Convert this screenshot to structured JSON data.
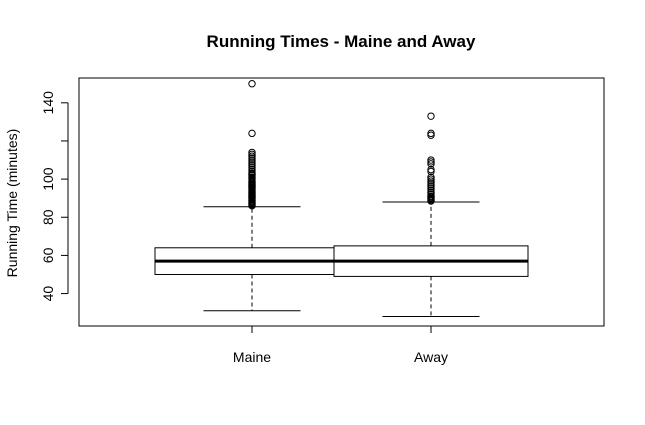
{
  "chart_data": {
    "type": "boxplot",
    "title": "Running Times - Maine and Away",
    "ylabel": "Running Time (minutes)",
    "xlabel": "",
    "ylim": [
      23,
      153
    ],
    "yticks": [
      40,
      60,
      80,
      100,
      120,
      140
    ],
    "ytick_labels": [
      "40",
      "60",
      "80",
      "100",
      "",
      "140"
    ],
    "categories": [
      "Maine",
      "Away"
    ],
    "boxes": [
      {
        "name": "Maine",
        "whisker_low": 31,
        "q1": 50,
        "median": 57,
        "q3": 64,
        "whisker_high": 85.5,
        "outliers": [
          86,
          86.5,
          87,
          87.5,
          88,
          88.5,
          89,
          89.5,
          90,
          90.5,
          91,
          91.5,
          92,
          92.5,
          93,
          93.5,
          94,
          94.5,
          95,
          95.5,
          96,
          96.5,
          97,
          97.5,
          98,
          98.5,
          99,
          100,
          100.5,
          101,
          102,
          102.5,
          103,
          104,
          105,
          106,
          107,
          108,
          109,
          110,
          111,
          112,
          113,
          114,
          124,
          150
        ]
      },
      {
        "name": "Away",
        "whisker_low": 28,
        "q1": 49,
        "median": 57,
        "q3": 65,
        "whisker_high": 88,
        "outliers": [
          88.5,
          89,
          89.5,
          90,
          90.5,
          91,
          92,
          93,
          94,
          95,
          96,
          97,
          98,
          99,
          100,
          101,
          104,
          105,
          108,
          109,
          110,
          123,
          124,
          133
        ]
      }
    ],
    "grid": false,
    "legend": "none"
  }
}
